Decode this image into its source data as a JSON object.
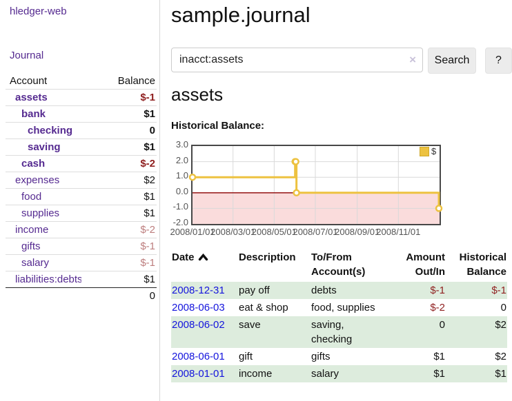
{
  "app": {
    "brand": "hledger-web",
    "nav": {
      "journal": "Journal"
    }
  },
  "sidebar": {
    "header": {
      "account": "Account",
      "balance": "Balance"
    },
    "accounts": [
      {
        "name": "assets",
        "balance": "$-1"
      },
      {
        "name": "bank",
        "balance": "$1"
      },
      {
        "name": "checking",
        "balance": "0"
      },
      {
        "name": "saving",
        "balance": "$1"
      },
      {
        "name": "cash",
        "balance": "$-2"
      },
      {
        "name": "expenses",
        "balance": "$2"
      },
      {
        "name": "food",
        "balance": "$1"
      },
      {
        "name": "supplies",
        "balance": "$1"
      },
      {
        "name": "income",
        "balance": "$-2"
      },
      {
        "name": "gifts",
        "balance": "$-1"
      },
      {
        "name": "salary",
        "balance": "$-1"
      },
      {
        "name": "liabilities:debts",
        "balance": "$1"
      }
    ],
    "total": "0"
  },
  "main": {
    "title": "sample.journal",
    "search": {
      "value": "inacct:assets",
      "clear": "×",
      "submit": "Search",
      "help": "?"
    },
    "heading": "assets",
    "chart_title": "Historical Balance:"
  },
  "chart_data": {
    "type": "line",
    "style": "step-after",
    "title": "Historical Balance:",
    "series": [
      {
        "name": "$",
        "color": "#edc240",
        "points": [
          [
            "2008-01-01",
            1
          ],
          [
            "2008-06-01",
            2
          ],
          [
            "2008-06-02",
            2
          ],
          [
            "2008-06-03",
            0
          ],
          [
            "2008-12-31",
            -1
          ]
        ]
      }
    ],
    "xlim": [
      "2008-01-01",
      "2009-01-01"
    ],
    "ylim": [
      -2,
      3
    ],
    "x_ticks": [
      {
        "label": "2008/01/01",
        "date": "2008-01-01"
      },
      {
        "label": "2008/03/01",
        "date": "2008-03-01"
      },
      {
        "label": "2008/05/01",
        "date": "2008-05-01"
      },
      {
        "label": "2008/07/01",
        "date": "2008-07-01"
      },
      {
        "label": "2008/09/01",
        "date": "2008-09-01"
      },
      {
        "label": "2008/11/01",
        "date": "2008-11-01"
      }
    ],
    "y_ticks": [
      {
        "label": "3.0",
        "value": 3
      },
      {
        "label": "2.0",
        "value": 2
      },
      {
        "label": "1.0",
        "value": 1
      },
      {
        "label": "0.0",
        "value": 0
      },
      {
        "label": "-1.0",
        "value": -1
      },
      {
        "label": "-2.0",
        "value": -2
      }
    ],
    "legend": {
      "label": "$",
      "position": "top-right"
    },
    "markings": {
      "negative_region": "#fadcdc",
      "zero_line": "#8b0000"
    },
    "grid": {
      "color": "#d9d9d9",
      "border": "#474747"
    }
  },
  "register": {
    "headers": {
      "date": "Date",
      "description": "Description",
      "accounts": "To/From Account(s)",
      "amount": "Amount Out/In",
      "balance": "Historical Balance"
    },
    "rows": [
      {
        "date": "2008-12-31",
        "description": "pay off",
        "accounts": "debts",
        "amount": "$-1",
        "balance": "$-1"
      },
      {
        "date": "2008-06-03",
        "description": "eat & shop",
        "accounts": "food, supplies",
        "amount": "$-2",
        "balance": "0"
      },
      {
        "date": "2008-06-02",
        "description": "save",
        "accounts": "saving, checking",
        "amount": "0",
        "balance": "$2"
      },
      {
        "date": "2008-06-01",
        "description": "gift",
        "accounts": "gifts",
        "amount": "$1",
        "balance": "$2"
      },
      {
        "date": "2008-01-01",
        "description": "income",
        "accounts": "salary",
        "amount": "$1",
        "balance": "$1"
      }
    ]
  },
  "colors": {
    "link_purple": "#552a90",
    "link_blue": "#1414dd",
    "negative_strong": "#8f1f1f",
    "negative_soft": "#bd7e7e",
    "row_green": "#ddecdd",
    "series_gold": "#edc240",
    "negative_region": "#fadcdc",
    "zero_line": "#8b0000"
  }
}
